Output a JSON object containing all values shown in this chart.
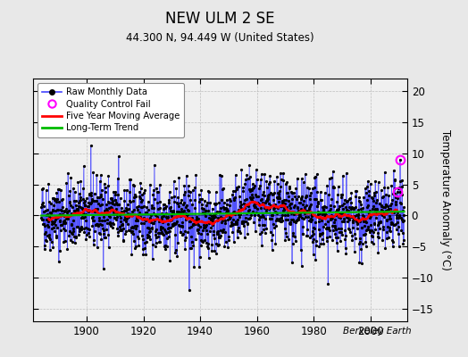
{
  "title": "NEW ULM 2 SE",
  "subtitle": "44.300 N, 94.449 W (United States)",
  "ylabel": "Temperature Anomaly (°C)",
  "attribution": "Berkeley Earth",
  "year_start": 1884,
  "year_end": 2011,
  "ylim": [
    -17,
    22
  ],
  "yticks": [
    -15,
    -10,
    -5,
    0,
    5,
    10,
    15,
    20
  ],
  "xticks": [
    1900,
    1920,
    1940,
    1960,
    1980,
    2000
  ],
  "fig_bg_color": "#e8e8e8",
  "plot_bg_color": "#f0f0f0",
  "raw_line_color": "#4444ff",
  "raw_marker_color": "#000000",
  "moving_avg_color": "#ff0000",
  "trend_color": "#00bb00",
  "qc_fail_color": "#ff00ff",
  "seed": 42,
  "noise_amplitude": 2.8,
  "trend_slope": 0.005,
  "qc_fail_idx_1": 1518,
  "qc_fail_val_1": 9.0,
  "qc_fail_idx_2": 1506,
  "qc_fail_val_2": 3.8
}
